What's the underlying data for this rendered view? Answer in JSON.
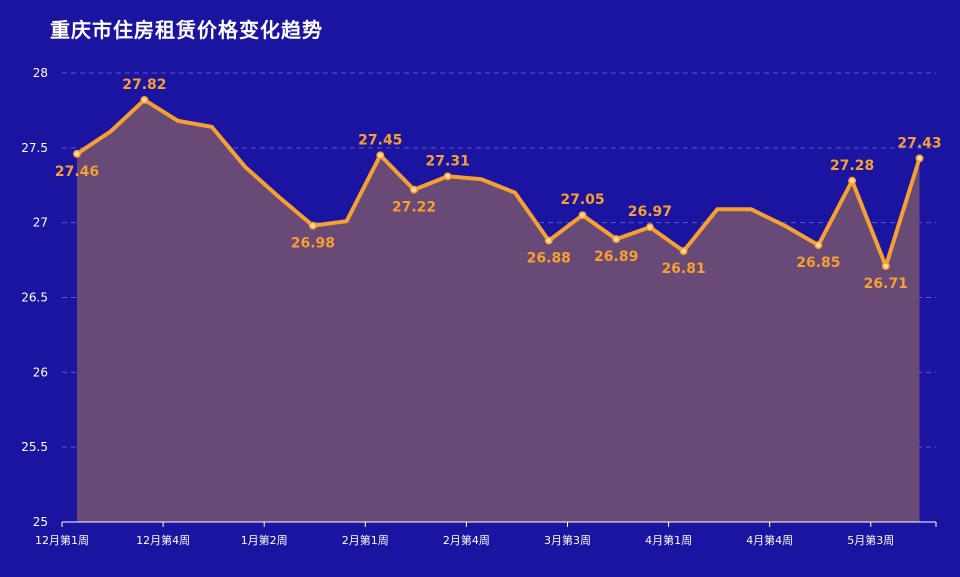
{
  "title": "重庆市住房租赁价格变化趋势",
  "colors": {
    "background": "#1a14a0",
    "line": "#f5a031",
    "area": "#6e4c74",
    "label": "#f5a031",
    "axis_text": "#ffffff",
    "grid": "#5a55c8"
  },
  "chart_data": {
    "type": "area",
    "title": "重庆市住房租赁价格变化趋势",
    "ylim": [
      25,
      28
    ],
    "yticks": [
      25,
      25.5,
      26,
      26.5,
      27,
      27.5,
      28
    ],
    "xtick_labels": [
      "12月第1周",
      "12月第4周",
      "1月第2周",
      "2月第1周",
      "2月第4周",
      "3月第3周",
      "4月第1周",
      "4月第4周",
      "5月第3周"
    ],
    "xtick_positions": [
      0,
      3,
      6,
      9,
      12,
      15,
      18,
      21,
      24
    ],
    "grid": true,
    "series": [
      {
        "values": [
          27.46,
          27.61,
          27.82,
          27.68,
          27.64,
          27.37,
          27.17,
          26.98,
          27.01,
          27.45,
          27.22,
          27.31,
          27.29,
          27.2,
          26.88,
          27.05,
          26.89,
          26.97,
          26.81,
          27.09,
          27.09,
          26.98,
          26.85,
          27.28,
          26.71,
          27.43
        ],
        "labeled_indices": [
          0,
          2,
          7,
          9,
          10,
          11,
          14,
          15,
          16,
          17,
          18,
          22,
          23,
          24,
          25
        ],
        "label_positions": [
          "below",
          "above",
          "below",
          "above",
          "below",
          "above",
          "below",
          "above",
          "below",
          "above",
          "below",
          "below",
          "above",
          "below",
          "above"
        ]
      }
    ]
  }
}
